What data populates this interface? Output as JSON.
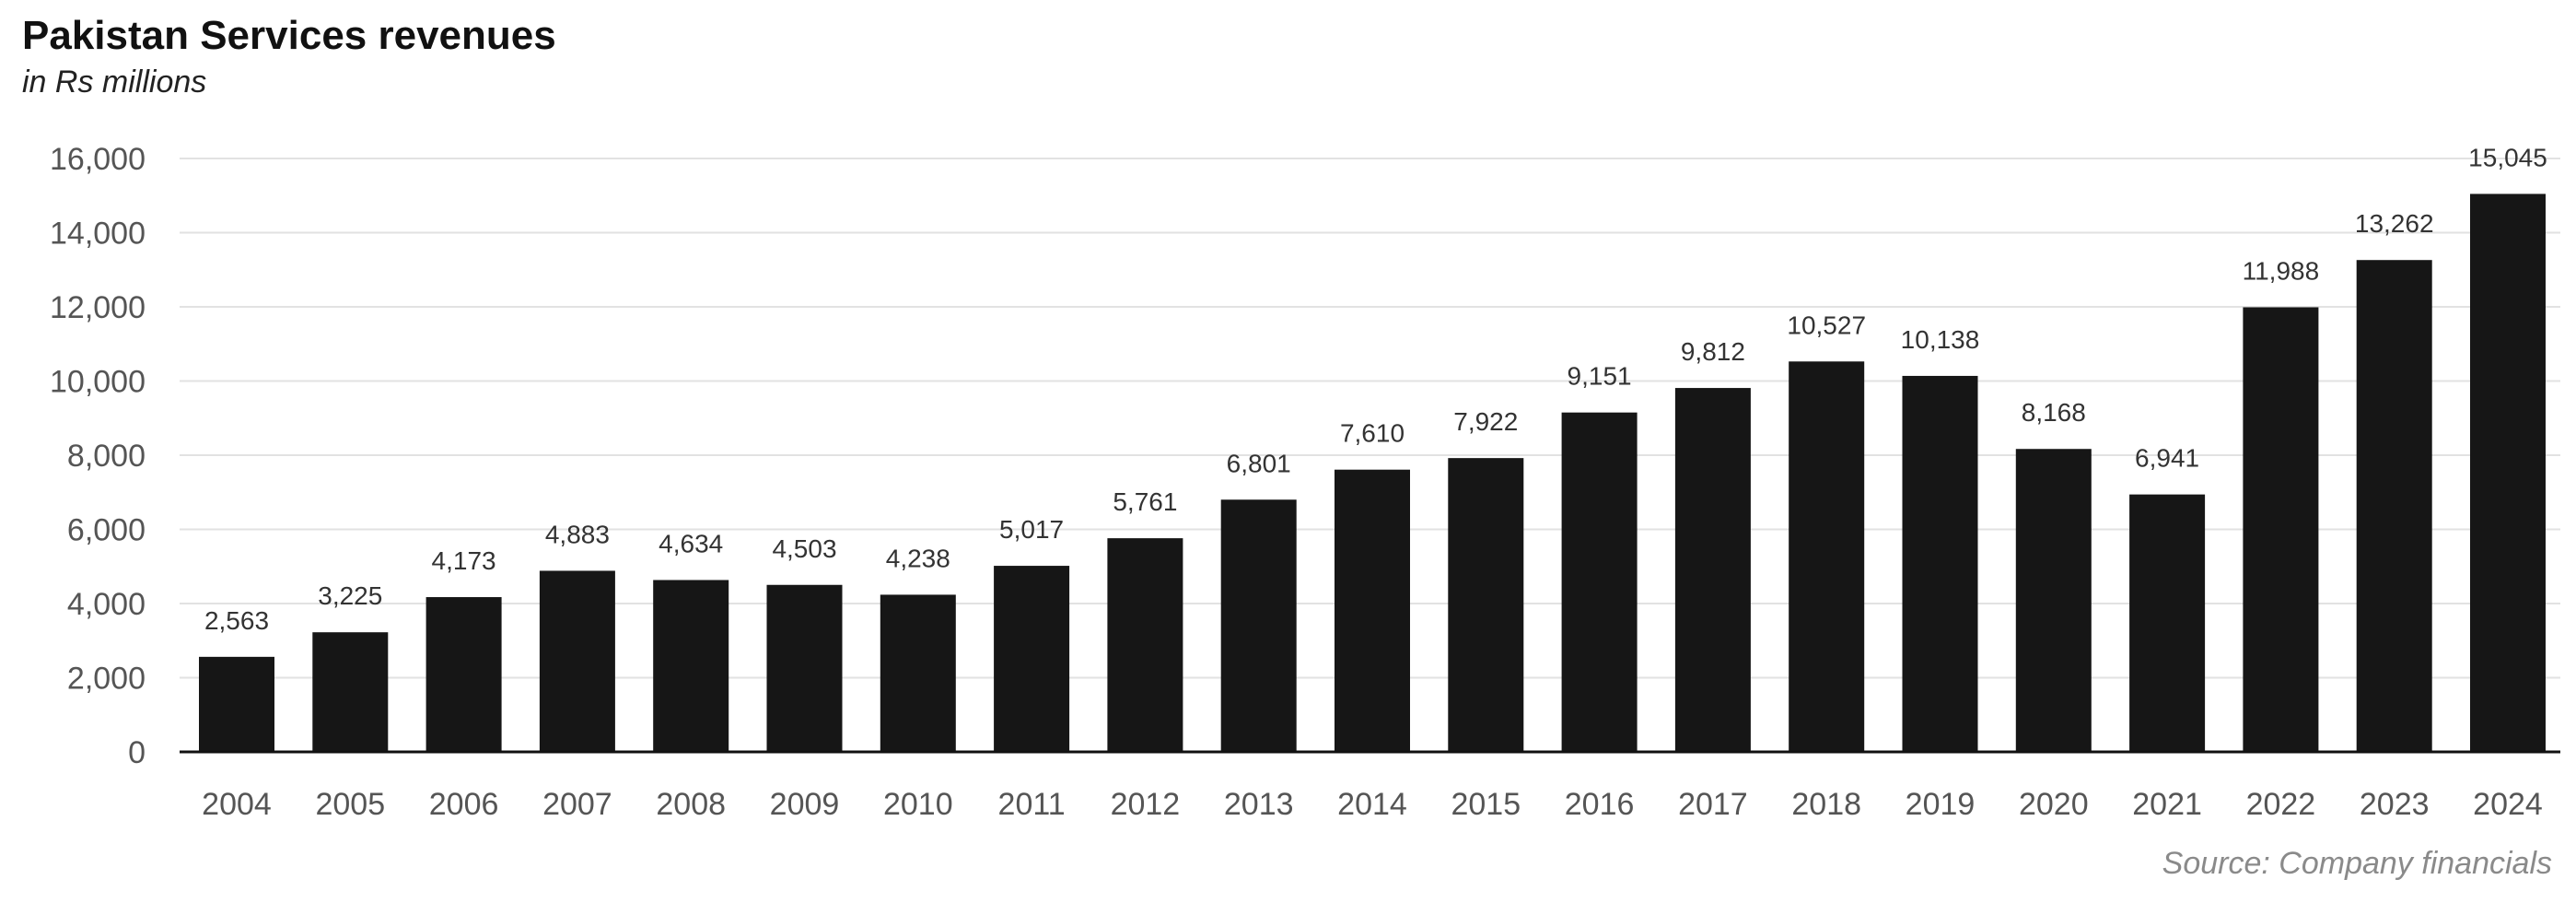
{
  "chart_data": {
    "type": "bar",
    "title": "Pakistan Services revenues",
    "subtitle": "in Rs millions",
    "source": "Source: Company financials",
    "categories": [
      "2004",
      "2005",
      "2006",
      "2007",
      "2008",
      "2009",
      "2010",
      "2011",
      "2012",
      "2013",
      "2014",
      "2015",
      "2016",
      "2017",
      "2018",
      "2019",
      "2020",
      "2021",
      "2022",
      "2023",
      "2024"
    ],
    "values": [
      2563,
      3225,
      4173,
      4883,
      4634,
      4503,
      4238,
      5017,
      5761,
      6801,
      7610,
      7922,
      9151,
      9812,
      10527,
      10138,
      8168,
      6941,
      11988,
      13262,
      15045
    ],
    "data_labels": [
      "2,563",
      "3,225",
      "4,173",
      "4,883",
      "4,634",
      "4,503",
      "4,238",
      "5,017",
      "5,761",
      "6,801",
      "7,610",
      "7,922",
      "9,151",
      "9,812",
      "10,527",
      "10,138",
      "8,168",
      "6,941",
      "11,988",
      "13,262",
      "15,045"
    ],
    "ylim": [
      0,
      16000
    ],
    "yticks": [
      0,
      2000,
      4000,
      6000,
      8000,
      10000,
      12000,
      14000,
      16000
    ],
    "ytick_labels": [
      "0",
      "2,000",
      "4,000",
      "6,000",
      "8,000",
      "10,000",
      "12,000",
      "14,000",
      "16,000"
    ],
    "xlabel": "",
    "ylabel": "",
    "grid": true,
    "legend": "none",
    "colors": {
      "bar": "#161616",
      "grid": "#e2e2e2",
      "axis": "#111111",
      "tick_text": "#555555",
      "label_text": "#333333"
    }
  }
}
